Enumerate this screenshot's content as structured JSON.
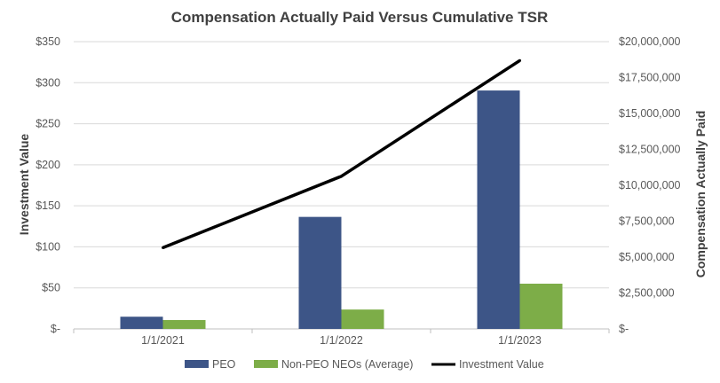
{
  "chart_data": {
    "type": "bar",
    "title": "Compensation Actually Paid Versus Cumulative TSR",
    "categories": [
      "1/1/2021",
      "1/1/2022",
      "1/1/2023"
    ],
    "y_left": {
      "label": "Investment Value",
      "ylim": [
        0,
        350
      ],
      "ticks": [
        {
          "value": 0,
          "label": "$-"
        },
        {
          "value": 50,
          "label": "$50"
        },
        {
          "value": 100,
          "label": "$100"
        },
        {
          "value": 150,
          "label": "$150"
        },
        {
          "value": 200,
          "label": "$200"
        },
        {
          "value": 250,
          "label": "$250"
        },
        {
          "value": 300,
          "label": "$300"
        },
        {
          "value": 350,
          "label": "$350"
        }
      ]
    },
    "y_right": {
      "label": "Compensation Actually Paid",
      "ylim": [
        0,
        20000000
      ],
      "ticks": [
        {
          "value": 0,
          "label": "$-"
        },
        {
          "value": 2500000,
          "label": "$2,500,000"
        },
        {
          "value": 5000000,
          "label": "$5,000,000"
        },
        {
          "value": 7500000,
          "label": "$7,500,000"
        },
        {
          "value": 10000000,
          "label": "$10,000,000"
        },
        {
          "value": 12500000,
          "label": "$12,500,000"
        },
        {
          "value": 15000000,
          "label": "$15,000,000"
        },
        {
          "value": 17500000,
          "label": "$17,500,000"
        },
        {
          "value": 20000000,
          "label": "$20,000,000"
        }
      ]
    },
    "series": [
      {
        "name": "PEO",
        "type": "bar",
        "axis": "right",
        "color": "#3d5587",
        "values": [
          850000,
          7800000,
          16600000
        ]
      },
      {
        "name": "Non-PEO NEOs (Average)",
        "type": "bar",
        "axis": "right",
        "color": "#7dad48",
        "values": [
          620000,
          1350000,
          3150000
        ]
      },
      {
        "name": "Investment Value",
        "type": "line",
        "axis": "left",
        "color": "#000000",
        "values": [
          99,
          186,
          327
        ]
      }
    ],
    "grid": true,
    "legend_position": "bottom"
  }
}
